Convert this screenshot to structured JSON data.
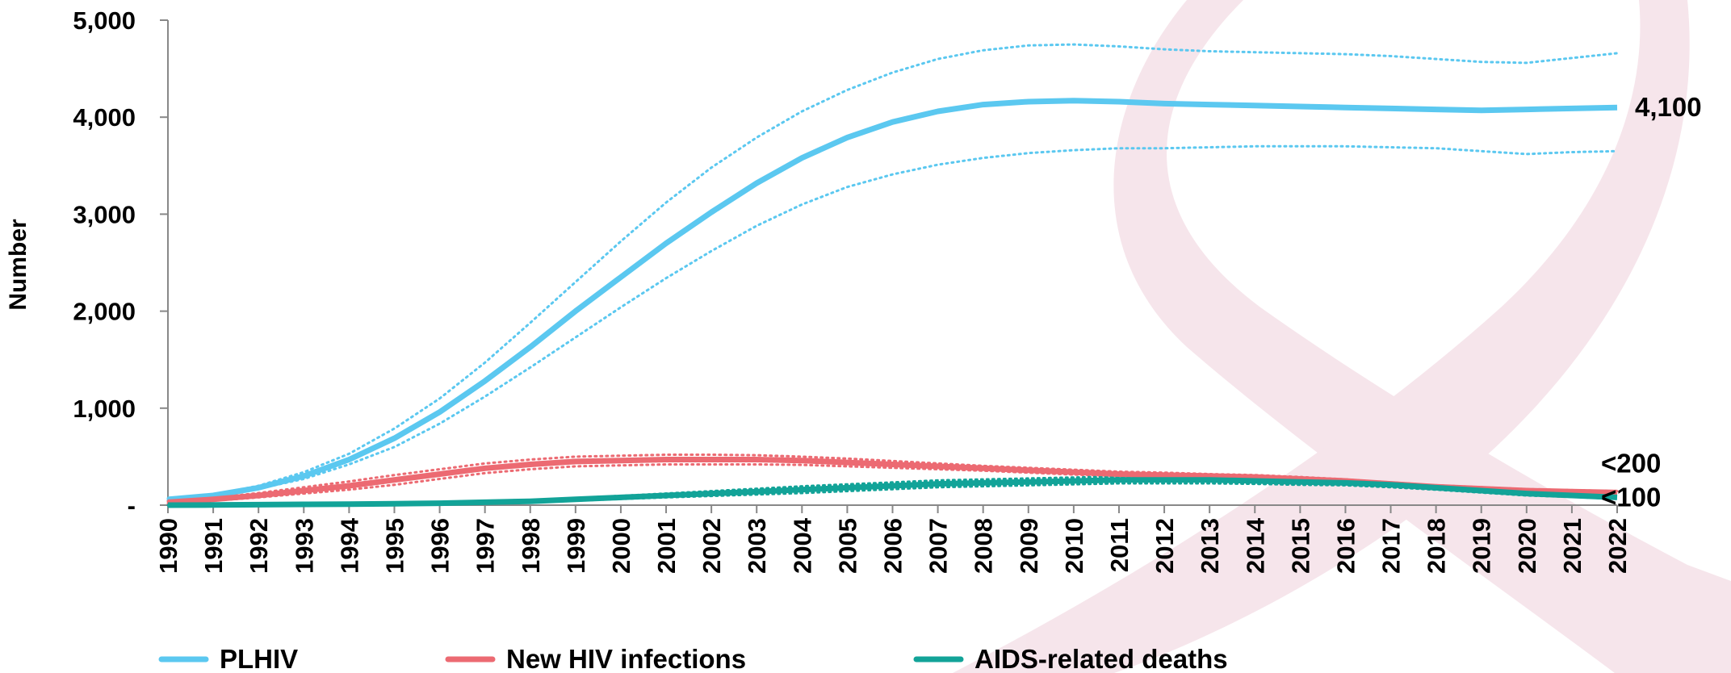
{
  "chart_data": {
    "type": "line",
    "y_label": "Number",
    "x": [
      1990,
      1991,
      1992,
      1993,
      1994,
      1995,
      1996,
      1997,
      1998,
      1999,
      2000,
      2001,
      2002,
      2003,
      2004,
      2005,
      2006,
      2007,
      2008,
      2009,
      2010,
      2011,
      2012,
      2013,
      2014,
      2015,
      2016,
      2017,
      2018,
      2019,
      2020,
      2021,
      2022
    ],
    "xlim": [
      1990,
      2022
    ],
    "xticks": [
      1990,
      1991,
      1992,
      1993,
      1994,
      1995,
      1996,
      1997,
      1998,
      1999,
      2000,
      2001,
      2002,
      2003,
      2004,
      2005,
      2006,
      2007,
      2008,
      2009,
      2010,
      2011,
      2012,
      2013,
      2014,
      2015,
      2016,
      2017,
      2018,
      2019,
      2020,
      2021,
      2022
    ],
    "ylim": [
      0,
      5000
    ],
    "yticks": [
      {
        "value": 0,
        "label": "-"
      },
      {
        "value": 1000,
        "label": "1,000"
      },
      {
        "value": 2000,
        "label": "2,000"
      },
      {
        "value": 3000,
        "label": "3,000"
      },
      {
        "value": 4000,
        "label": "4,000"
      },
      {
        "value": 5000,
        "label": "5,000"
      }
    ],
    "series": [
      {
        "name": "PLHIV",
        "color": "#5bc8f0",
        "label_color": "#1ab0e8",
        "end_label": "4,100",
        "values": [
          60,
          100,
          180,
          300,
          470,
          690,
          960,
          1280,
          1630,
          2000,
          2350,
          2700,
          3020,
          3320,
          3580,
          3790,
          3950,
          4060,
          4130,
          4160,
          4170,
          4160,
          4140,
          4130,
          4120,
          4110,
          4100,
          4090,
          4080,
          4070,
          4080,
          4090,
          4100
        ],
        "upper": [
          70,
          110,
          200,
          340,
          530,
          790,
          1100,
          1470,
          1880,
          2300,
          2720,
          3120,
          3480,
          3790,
          4060,
          4280,
          4460,
          4600,
          4690,
          4740,
          4750,
          4730,
          4700,
          4680,
          4670,
          4660,
          4650,
          4630,
          4600,
          4570,
          4560,
          4610,
          4660
        ],
        "lower": [
          50,
          90,
          170,
          270,
          420,
          600,
          840,
          1120,
          1420,
          1730,
          2040,
          2340,
          2620,
          2880,
          3100,
          3280,
          3410,
          3510,
          3580,
          3630,
          3660,
          3680,
          3680,
          3690,
          3700,
          3700,
          3700,
          3690,
          3680,
          3650,
          3620,
          3640,
          3650
        ]
      },
      {
        "name": "New HIV infections",
        "color": "#ec6a72",
        "label_color": "#ec6a72",
        "end_label": "<200",
        "values": [
          30,
          60,
          100,
          150,
          200,
          260,
          320,
          380,
          420,
          450,
          460,
          470,
          470,
          470,
          460,
          440,
          420,
          400,
          380,
          360,
          340,
          320,
          310,
          300,
          290,
          270,
          250,
          220,
          190,
          170,
          150,
          140,
          130
        ],
        "upper": [
          40,
          75,
          125,
          185,
          245,
          310,
          370,
          430,
          470,
          500,
          510,
          520,
          520,
          515,
          500,
          480,
          455,
          430,
          405,
          385,
          365,
          345,
          335,
          320,
          310,
          290,
          265,
          235,
          205,
          185,
          165,
          155,
          145
        ],
        "lower": [
          20,
          45,
          80,
          120,
          160,
          210,
          270,
          330,
          370,
          400,
          410,
          420,
          420,
          420,
          415,
          400,
          385,
          370,
          355,
          335,
          315,
          300,
          290,
          280,
          270,
          250,
          235,
          205,
          175,
          155,
          135,
          125,
          115
        ]
      },
      {
        "name": "AIDS-related deaths",
        "color": "#12a398",
        "label_color": "#12a398",
        "end_label": "<100",
        "values": [
          0,
          2,
          5,
          8,
          10,
          15,
          20,
          30,
          40,
          60,
          80,
          100,
          120,
          140,
          160,
          180,
          200,
          220,
          230,
          240,
          250,
          260,
          260,
          260,
          250,
          240,
          230,
          210,
          180,
          150,
          120,
          100,
          80
        ],
        "upper": [
          0,
          3,
          7,
          11,
          14,
          20,
          27,
          38,
          50,
          73,
          96,
          120,
          145,
          170,
          195,
          215,
          235,
          255,
          265,
          275,
          285,
          295,
          295,
          290,
          280,
          270,
          255,
          235,
          200,
          170,
          140,
          115,
          95
        ],
        "lower": [
          0,
          1,
          3,
          5,
          7,
          10,
          14,
          22,
          30,
          47,
          64,
          80,
          95,
          110,
          125,
          145,
          165,
          185,
          195,
          205,
          215,
          225,
          225,
          225,
          220,
          210,
          205,
          185,
          160,
          130,
          100,
          85,
          65
        ]
      }
    ]
  }
}
